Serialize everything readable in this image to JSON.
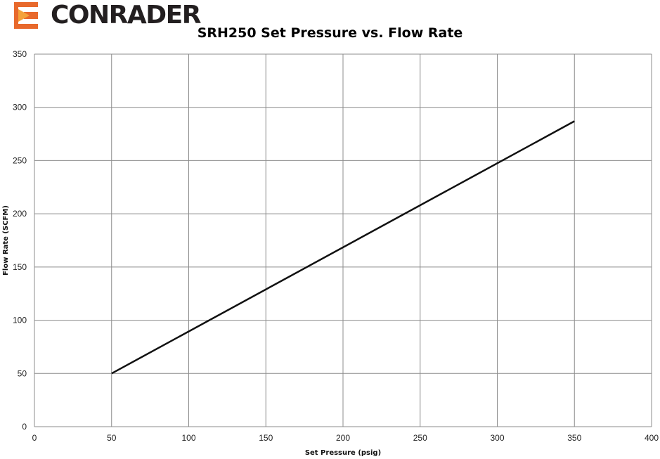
{
  "brand": {
    "name": "CONRADER",
    "colors": {
      "orange": "#e8692c",
      "dark": "#231f20"
    }
  },
  "chart_data": {
    "type": "line",
    "title": "SRH250 Set Pressure vs. Flow Rate",
    "xlabel": "Set Pressure (psig)",
    "ylabel": "Flow Rate (SCFM)",
    "xlim": [
      0,
      400
    ],
    "ylim": [
      0,
      350
    ],
    "xticks": [
      0,
      50,
      100,
      150,
      200,
      250,
      300,
      350,
      400
    ],
    "yticks": [
      0,
      50,
      100,
      150,
      200,
      250,
      300,
      350
    ],
    "grid": true,
    "legend": "none",
    "series": [
      {
        "x": [
          50,
          350
        ],
        "y": [
          50,
          287
        ],
        "color": "#111111"
      }
    ]
  }
}
